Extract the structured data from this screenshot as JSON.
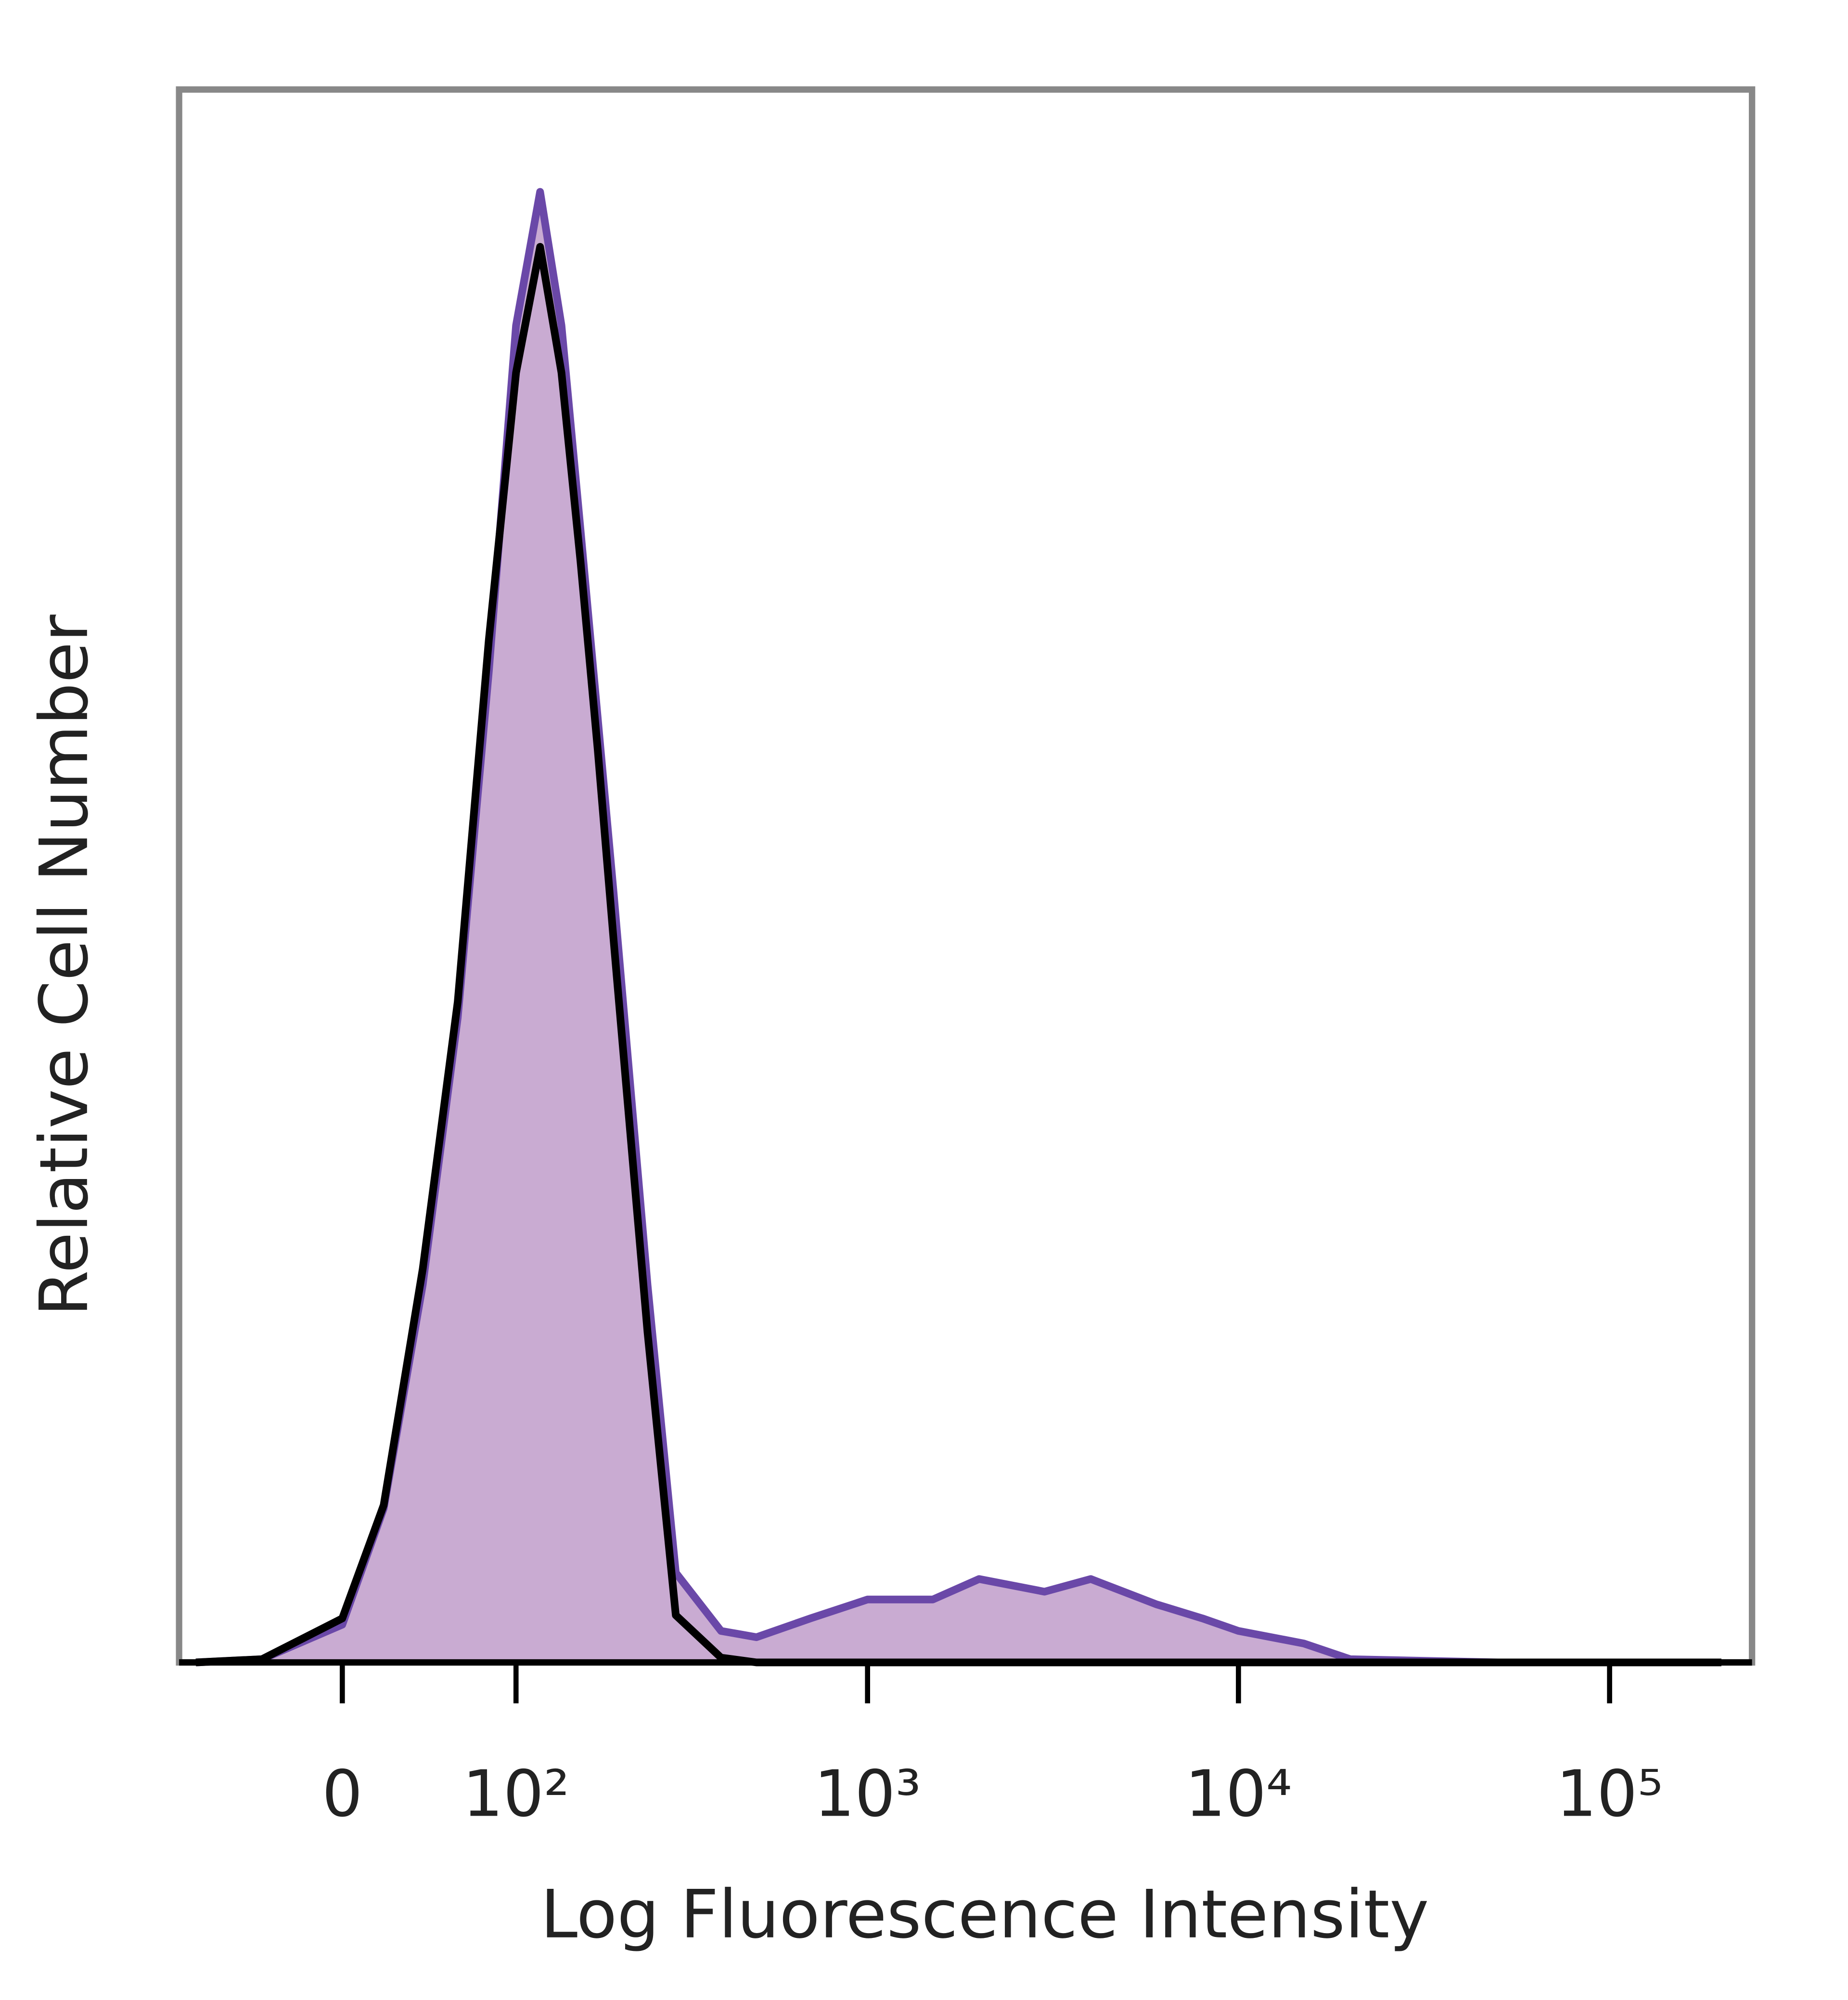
{
  "chart_data": {
    "type": "line",
    "xlabel": "Log Fluorescence Intensity",
    "ylabel": "Relative Cell Number",
    "xscale": "asinh",
    "x": [
      -80,
      -40,
      0,
      20,
      40,
      60,
      80,
      100,
      120,
      140,
      160,
      180,
      200,
      250,
      300,
      400,
      500,
      700,
      1000,
      1500,
      2000,
      3000,
      4000,
      6000,
      8000,
      10000,
      15000,
      20000,
      50000,
      100000,
      200000
    ],
    "series": [
      {
        "color": "#6a48a8",
        "fill": "#c9abd2",
        "values": [
          0,
          0.2,
          2.4,
          9.8,
          24,
          41,
          63,
          85,
          93.5,
          85,
          72,
          60,
          49,
          24,
          5.7,
          2,
          1.6,
          2.8,
          4,
          4,
          5.3,
          4.5,
          5.3,
          3.7,
          2.8,
          2,
          1.2,
          0.2,
          0,
          0,
          0
        ]
      },
      {
        "color": "#000000",
        "values": [
          0,
          0.2,
          2.8,
          10,
          25,
          42,
          65,
          82,
          90,
          82,
          70,
          58,
          46,
          21,
          3,
          0.3,
          0,
          0,
          0,
          0,
          0,
          0,
          0,
          0,
          0,
          0,
          0,
          0,
          0,
          0,
          0
        ]
      }
    ],
    "xlim": [
      -92,
      242000
    ],
    "xticks": [
      0,
      {
        "value": 100,
        "label": "10²"
      },
      {
        "value": 1000,
        "label": "10³"
      },
      {
        "value": 10000,
        "label": "10⁴"
      },
      {
        "value": 100000,
        "label": "10⁵"
      }
    ],
    "ylim": [
      0,
      100
    ]
  }
}
